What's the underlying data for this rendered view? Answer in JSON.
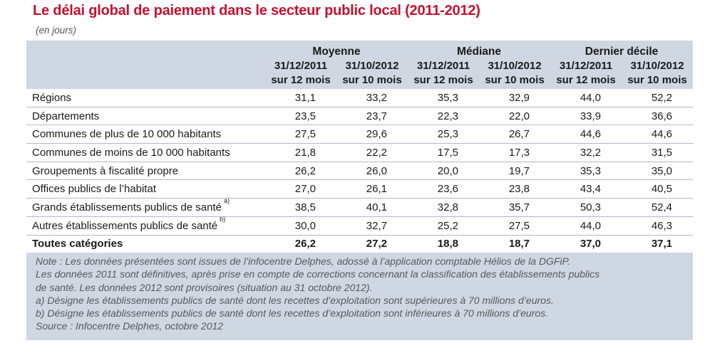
{
  "title": "Le délai global de paiement dans le secteur public local (2011-2012)",
  "unit": "(en jours)",
  "groups": [
    "Moyenne",
    "Médiane",
    "Dernier décile"
  ],
  "subcols": [
    {
      "date": "31/12/2011",
      "period": "sur 12 mois"
    },
    {
      "date": "31/10/2012",
      "period": "sur 10 mois"
    },
    {
      "date": "31/12/2011",
      "period": "sur 12 mois"
    },
    {
      "date": "31/10/2012",
      "period": "sur 10 mois"
    },
    {
      "date": "31/12/2011",
      "period": "sur 12 mois"
    },
    {
      "date": "31/10/2012",
      "period": "sur 10 mois"
    }
  ],
  "rows": [
    {
      "label": "Régions",
      "sup": "",
      "values": [
        "31,1",
        "33,2",
        "35,3",
        "32,9",
        "44,0",
        "52,2"
      ]
    },
    {
      "label": "Départements",
      "sup": "",
      "values": [
        "23,5",
        "23,7",
        "22,3",
        "22,0",
        "33,9",
        "36,6"
      ]
    },
    {
      "label": "Communes de plus de 10 000 habitants",
      "sup": "",
      "values": [
        "27,5",
        "29,6",
        "25,3",
        "26,7",
        "44,6",
        "44,6"
      ]
    },
    {
      "label": "Communes de moins de 10 000 habitants",
      "sup": "",
      "values": [
        "21,8",
        "22,2",
        "17,5",
        "17,3",
        "32,2",
        "31,5"
      ]
    },
    {
      "label": "Groupements à fiscalité propre",
      "sup": "",
      "values": [
        "26,2",
        "26,0",
        "20,0",
        "19,7",
        "35,3",
        "35,0"
      ]
    },
    {
      "label": "Offices publics de l’habitat",
      "sup": "",
      "values": [
        "27,0",
        "26,1",
        "23,6",
        "23,8",
        "43,4",
        "40,5"
      ]
    },
    {
      "label": "Grands établissements publics de santé",
      "sup": "a)",
      "values": [
        "38,5",
        "40,1",
        "32,8",
        "35,7",
        "50,3",
        "52,4"
      ]
    },
    {
      "label": "Autres établissements publics de santé",
      "sup": "b)",
      "values": [
        "30,0",
        "32,7",
        "25,2",
        "27,5",
        "44,0",
        "46,3"
      ]
    }
  ],
  "total": {
    "label": "Toutes catégories",
    "values": [
      "26,2",
      "27,2",
      "18,8",
      "18,7",
      "37,0",
      "37,1"
    ]
  },
  "notes": [
    "Note : Les données présentées sont issues de l’infocentre Delphes, adossé à l’application comptable Hélios de la DGFiP.",
    "Les données 2011 sont définitives, après prise en compte de corrections concernant la classification des établissements publics",
    "de santé. Les données 2012 sont provisoires (situation au 31 octobre 2012).",
    "a) Désigne les établissements publics de santé dont les recettes d’exploitation sont supérieures à 70 millions d’euros.",
    "b) Désigne les établissements publics de santé dont les recettes d’exploitation sont inférieures à 70 millions d’euros.",
    "Source : Infocentre Delphes, octobre 2012"
  ]
}
